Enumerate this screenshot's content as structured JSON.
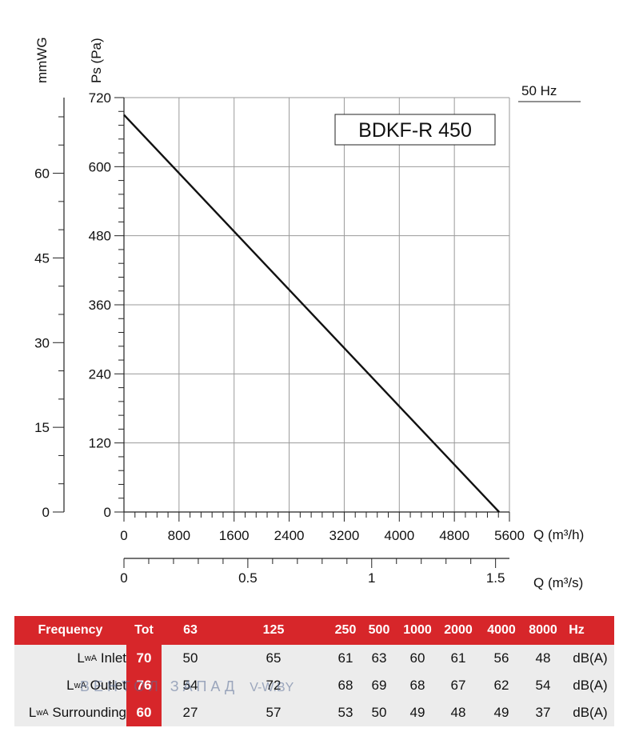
{
  "chart_data": {
    "type": "line",
    "title": "BDKF-R 450",
    "frequency_label": "50 Hz",
    "y_label": "Ps (Pa)",
    "y2_label": "mmWG",
    "x_label": "Q (m³/h)",
    "x2_label": "Q (m³/s)",
    "x_ticks": [
      "0",
      "800",
      "1600",
      "2400",
      "3200",
      "4000",
      "4800",
      "5600"
    ],
    "y_ticks": [
      "0",
      "120",
      "240",
      "360",
      "480",
      "600",
      "720"
    ],
    "y2_ticks": [
      "0",
      "15",
      "30",
      "45",
      "60"
    ],
    "x2_ticks": [
      "0",
      "0.5",
      "1",
      "1.5"
    ],
    "xlim": [
      0,
      5600
    ],
    "ylim": [
      0,
      720
    ],
    "y2lim": [
      0,
      73.4
    ],
    "x2lim": [
      0,
      1.556
    ],
    "grid": true,
    "series": [
      {
        "x": [
          0,
          5450
        ],
        "y": [
          690,
          0
        ]
      }
    ]
  },
  "table": {
    "header": {
      "frequency": "Frequency",
      "tot": "Tot",
      "bands": [
        "63",
        "125",
        "250",
        "500",
        "1000",
        "2000",
        "4000",
        "8000"
      ],
      "unit": "Hz"
    },
    "rows": [
      {
        "label": "Inlet",
        "tot": "70",
        "values": [
          "50",
          "65",
          "61",
          "63",
          "60",
          "61",
          "56",
          "48"
        ],
        "unit": "dB(A)"
      },
      {
        "label": "Outlet",
        "tot": "76",
        "values": [
          "54",
          "72",
          "68",
          "69",
          "68",
          "67",
          "62",
          "54"
        ],
        "unit": "dB(A)"
      },
      {
        "label": "Surrounding",
        "tot": "60",
        "values": [
          "27",
          "57",
          "53",
          "50",
          "49",
          "48",
          "49",
          "37"
        ],
        "unit": "dB(A)"
      }
    ],
    "lwa_prefix": "L",
    "lwa_sub": "wA"
  },
  "watermark": {
    "text": "ВЕНТОЛ ЗАПАД",
    "url": "V-W.BY"
  }
}
